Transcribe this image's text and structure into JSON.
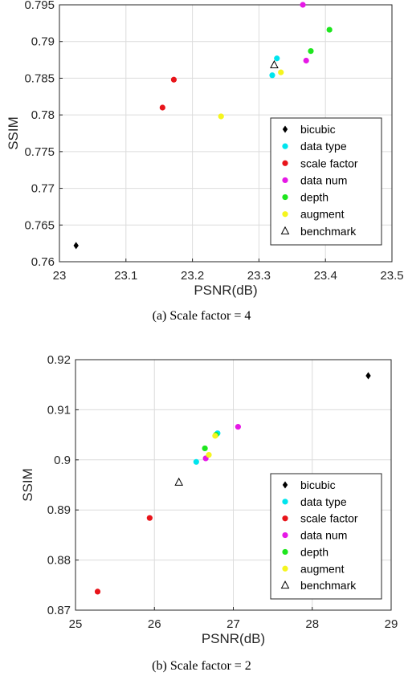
{
  "chart_data": [
    {
      "type": "scatter",
      "caption": "(a) Scale factor = 4",
      "xlabel": "PSNR(dB)",
      "ylabel": "SSIM",
      "xlim": [
        23.0,
        23.5
      ],
      "ylim": [
        0.76,
        0.795
      ],
      "xticks": [
        "23",
        "23.1",
        "23.2",
        "23.3",
        "23.4",
        "23.5"
      ],
      "yticks": [
        "0.76",
        "0.765",
        "0.77",
        "0.775",
        "0.78",
        "0.785",
        "0.79",
        "0.795"
      ],
      "grid": true,
      "legend_position": "bottom-right",
      "series": [
        {
          "name": "bicubic",
          "marker": "diamond",
          "color": "#000000",
          "points": [
            [
              23.025,
              0.7622
            ]
          ]
        },
        {
          "name": "data type",
          "marker": "circle",
          "color": "#00e5ee",
          "points": [
            [
              23.327,
              0.7877
            ],
            [
              23.32,
              0.7854
            ]
          ]
        },
        {
          "name": "scale factor",
          "marker": "circle",
          "color": "#e8141a",
          "points": [
            [
              23.172,
              0.7848
            ],
            [
              23.155,
              0.781
            ]
          ]
        },
        {
          "name": "data num",
          "marker": "circle",
          "color": "#e619e6",
          "points": [
            [
              23.366,
              0.795
            ],
            [
              23.371,
              0.7874
            ]
          ]
        },
        {
          "name": "depth",
          "marker": "circle",
          "color": "#1ee61e",
          "points": [
            [
              23.406,
              0.7916
            ],
            [
              23.378,
              0.7887
            ]
          ]
        },
        {
          "name": "augment",
          "marker": "circle",
          "color": "#f5f51e",
          "points": [
            [
              23.333,
              0.7858
            ],
            [
              23.243,
              0.7798
            ]
          ]
        },
        {
          "name": "benchmark",
          "marker": "triangle",
          "color": "#000000",
          "points": [
            [
              23.323,
              0.7868
            ]
          ]
        }
      ]
    },
    {
      "type": "scatter",
      "caption": "(b) Scale factor = 2",
      "xlabel": "PSNR(dB)",
      "ylabel": "SSIM",
      "xlim": [
        25,
        29
      ],
      "ylim": [
        0.87,
        0.92
      ],
      "xticks": [
        "25",
        "26",
        "27",
        "28",
        "29"
      ],
      "yticks": [
        "0.87",
        "0.88",
        "0.89",
        "0.9",
        "0.91",
        "0.92"
      ],
      "grid": true,
      "legend_position": "bottom-right",
      "series": [
        {
          "name": "bicubic",
          "marker": "diamond",
          "color": "#000000",
          "points": [
            [
              28.71,
              0.9168
            ]
          ]
        },
        {
          "name": "data type",
          "marker": "circle",
          "color": "#00e5ee",
          "points": [
            [
              26.8,
              0.9053
            ],
            [
              26.53,
              0.8996
            ]
          ]
        },
        {
          "name": "scale factor",
          "marker": "circle",
          "color": "#e8141a",
          "points": [
            [
              25.94,
              0.8884
            ],
            [
              25.28,
              0.8737
            ]
          ]
        },
        {
          "name": "data num",
          "marker": "circle",
          "color": "#e619e6",
          "points": [
            [
              27.06,
              0.9066
            ],
            [
              26.65,
              0.9003
            ]
          ]
        },
        {
          "name": "depth",
          "marker": "circle",
          "color": "#1ee61e",
          "points": [
            [
              26.64,
              0.9023
            ],
            [
              26.78,
              0.905
            ]
          ]
        },
        {
          "name": "augment",
          "marker": "circle",
          "color": "#f5f51e",
          "points": [
            [
              26.69,
              0.901
            ],
            [
              26.77,
              0.9048
            ]
          ]
        },
        {
          "name": "benchmark",
          "marker": "triangle",
          "color": "#000000",
          "points": [
            [
              26.31,
              0.8955
            ]
          ]
        }
      ]
    }
  ]
}
